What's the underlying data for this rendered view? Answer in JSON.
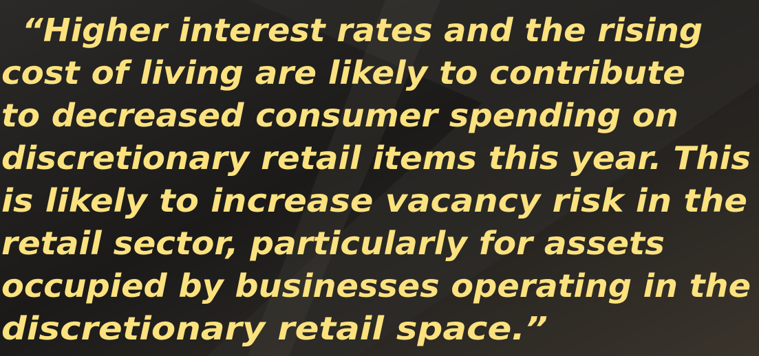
{
  "quote": {
    "lines": [
      "“Higher interest rates and the rising",
      "cost of living are likely to contribute",
      "to decreased consumer spending on",
      "discretionary retail items this year. This",
      "is likely to increase vacancy risk in the",
      "retail sector, particularly for assets",
      "occupied by businesses operating in the",
      "discretionary retail space.”"
    ]
  }
}
